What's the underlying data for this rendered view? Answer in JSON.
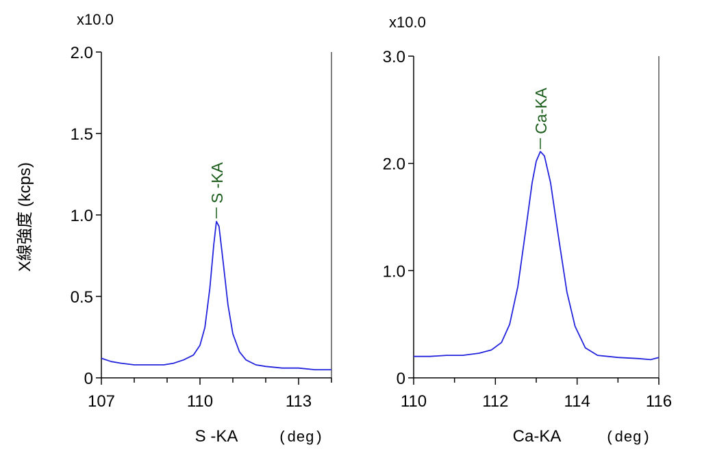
{
  "ylabel": "X線強度 (kcps)",
  "chart_data": [
    {
      "type": "line",
      "multiplier": "x10.0",
      "xlabel": "S -KA",
      "xunit": "(deg)",
      "xlim": [
        107,
        114
      ],
      "ylim": [
        0,
        2.0
      ],
      "xticks": [
        107,
        110,
        113
      ],
      "yticks": [
        0,
        0.5,
        1.0,
        1.5,
        2.0
      ],
      "ytick_labels": [
        "0",
        "0.5",
        "1.0",
        "1.5",
        "2.0"
      ],
      "peak": {
        "label": "S -KA",
        "x": 110.5,
        "y": 0.97
      },
      "colors": {
        "line": "#2222dd",
        "peak": "#1a5c1a"
      },
      "x": [
        107.0,
        107.3,
        107.6,
        108.0,
        108.5,
        108.9,
        109.2,
        109.5,
        109.8,
        110.0,
        110.15,
        110.3,
        110.42,
        110.5,
        110.58,
        110.7,
        110.85,
        111.0,
        111.2,
        111.4,
        111.7,
        112.0,
        112.5,
        113.0,
        113.5,
        114.0
      ],
      "y": [
        0.12,
        0.1,
        0.09,
        0.08,
        0.08,
        0.08,
        0.09,
        0.11,
        0.14,
        0.2,
        0.31,
        0.55,
        0.82,
        0.96,
        0.93,
        0.72,
        0.45,
        0.27,
        0.16,
        0.11,
        0.08,
        0.07,
        0.06,
        0.06,
        0.05,
        0.05
      ]
    },
    {
      "type": "line",
      "multiplier": "x10.0",
      "xlabel": "Ca-KA",
      "xunit": "(deg)",
      "xlim": [
        110,
        116
      ],
      "ylim": [
        0,
        3.0
      ],
      "xticks": [
        110,
        112,
        114,
        116
      ],
      "yticks": [
        0,
        1.0,
        2.0,
        3.0
      ],
      "ytick_labels": [
        "0",
        "1.0",
        "2.0",
        "3.0"
      ],
      "peak": {
        "label": "Ca-KA",
        "x": 113.1,
        "y": 2.12
      },
      "colors": {
        "line": "#2222dd",
        "peak": "#1a5c1a"
      },
      "x": [
        110.0,
        110.4,
        110.8,
        111.2,
        111.6,
        111.9,
        112.15,
        112.35,
        112.55,
        112.75,
        112.9,
        113.0,
        113.1,
        113.2,
        113.35,
        113.55,
        113.75,
        113.95,
        114.2,
        114.5,
        115.0,
        115.5,
        115.8,
        116.0
      ],
      "y": [
        0.2,
        0.2,
        0.21,
        0.21,
        0.23,
        0.26,
        0.33,
        0.5,
        0.85,
        1.4,
        1.82,
        2.02,
        2.11,
        2.07,
        1.82,
        1.3,
        0.8,
        0.48,
        0.28,
        0.21,
        0.19,
        0.18,
        0.17,
        0.19
      ]
    }
  ]
}
